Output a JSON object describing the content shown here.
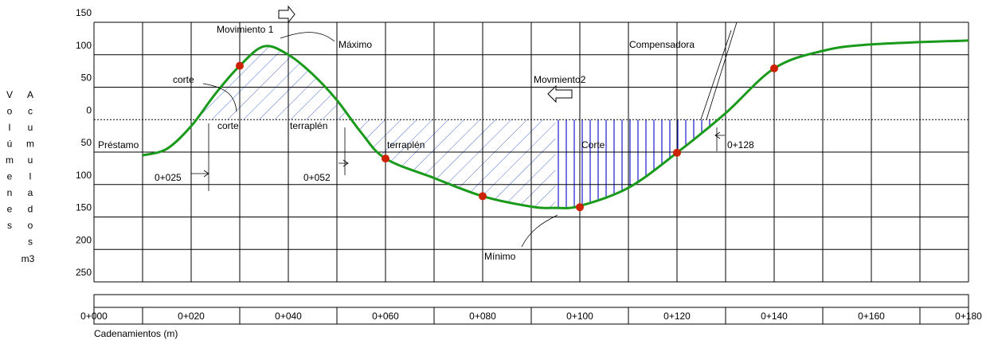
{
  "chart_data": {
    "type": "line",
    "y_label": [
      "Volúmenes",
      "Acumulados",
      "m3"
    ],
    "x_label": "Cadenamientos (m)",
    "xlim": [
      0,
      180
    ],
    "ylim": [
      -250,
      150
    ],
    "xticks": [
      {
        "value": 0,
        "label": "0+000"
      },
      {
        "value": 20,
        "label": "0+020"
      },
      {
        "value": 40,
        "label": "0+040"
      },
      {
        "value": 60,
        "label": "0+060"
      },
      {
        "value": 80,
        "label": "0+080"
      },
      {
        "value": 100,
        "label": "0+100"
      },
      {
        "value": 120,
        "label": "0+120"
      },
      {
        "value": 140,
        "label": "0+140"
      },
      {
        "value": 160,
        "label": "0+160"
      },
      {
        "value": 180,
        "label": "0+180"
      }
    ],
    "yticks": [
      150,
      100,
      50,
      0,
      {
        "value": -50,
        "label": "50"
      },
      {
        "value": -100,
        "label": "100"
      },
      {
        "value": -150,
        "label": "150"
      },
      {
        "value": -200,
        "label": "200"
      },
      {
        "value": -250,
        "label": "250"
      }
    ],
    "grid": true,
    "series": [
      {
        "color": "#1a9a1a",
        "x": [
          10,
          15,
          20,
          25,
          30,
          35,
          40,
          45,
          50,
          55,
          60,
          70,
          80,
          90,
          95,
          100,
          110,
          120,
          130,
          140,
          150,
          160,
          180
        ],
        "values": [
          -55,
          -45,
          -10,
          40,
          83,
          113,
          100,
          70,
          30,
          -20,
          -60,
          -90,
          -118,
          -134,
          -136,
          -133,
          -105,
          -51,
          10,
          79,
          106,
          116,
          122
        ]
      }
    ],
    "points": {
      "color": "#cc2200",
      "x": [
        30,
        60,
        80,
        100,
        120,
        140
      ],
      "values": [
        83,
        -60,
        -118,
        -135,
        -51,
        79
      ]
    },
    "annotations": [
      "Movimiento 1",
      "Máximo",
      "Compensadora",
      "corte",
      "Movmiento2",
      "corte",
      "terraplén",
      "Préstamo",
      "terraplén",
      "Corte",
      "0+128",
      "0+025",
      "0+052",
      "Mínimo"
    ]
  }
}
